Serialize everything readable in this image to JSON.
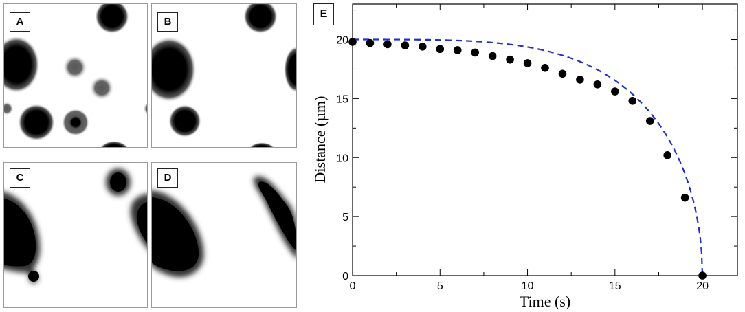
{
  "panels": {
    "a": {
      "label": "A"
    },
    "b": {
      "label": "B"
    },
    "c": {
      "label": "C"
    },
    "d": {
      "label": "D"
    },
    "e": {
      "label": "E"
    }
  },
  "chart_data": {
    "type": "scatter",
    "xlabel": "Time (s)",
    "ylabel": "Distance (µm)",
    "xlim": [
      0,
      22
    ],
    "ylim": [
      0,
      23
    ],
    "xticks": [
      0,
      5,
      10,
      15,
      20
    ],
    "yticks": [
      0,
      5,
      10,
      15,
      20
    ],
    "grid": false,
    "series": [
      {
        "style": "markers",
        "color": "#000000",
        "x": [
          0,
          1,
          2,
          3,
          4,
          5,
          6,
          7,
          8,
          9,
          10,
          11,
          12,
          13,
          14,
          15,
          16,
          17,
          18,
          19,
          20
        ],
        "y": [
          19.8,
          19.7,
          19.6,
          19.5,
          19.4,
          19.2,
          19.1,
          18.9,
          18.6,
          18.3,
          18.0,
          17.6,
          17.1,
          16.6,
          16.2,
          15.6,
          14.8,
          13.1,
          10.2,
          6.6,
          0.0
        ]
      },
      {
        "style": "dashed-line",
        "color": "#1f2fd0",
        "fit": "20*sqrt(1-(t/20)^4)"
      }
    ]
  }
}
